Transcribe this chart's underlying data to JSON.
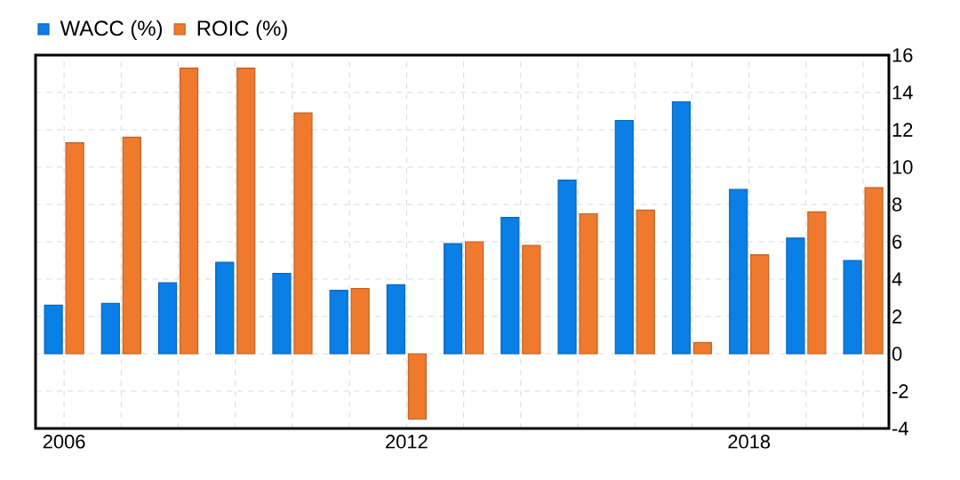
{
  "chart_data": {
    "type": "bar",
    "x": [
      2006,
      2007,
      2008,
      2009,
      2010,
      2011,
      2012,
      2013,
      2014,
      2015,
      2016,
      2017,
      2018,
      2019,
      2020
    ],
    "series": [
      {
        "name": "WACC  (%)",
        "color": "#0a7fe6",
        "values": [
          2.6,
          2.7,
          3.8,
          4.9,
          4.3,
          3.4,
          3.7,
          5.9,
          7.3,
          9.3,
          12.5,
          13.5,
          8.8,
          6.2,
          5.0
        ]
      },
      {
        "name": "ROIC (%)",
        "color": "#ef7a2e",
        "values": [
          11.3,
          11.6,
          15.3,
          15.3,
          12.9,
          3.5,
          -3.5,
          6.0,
          5.8,
          7.5,
          7.7,
          0.6,
          5.3,
          7.6,
          8.9
        ]
      }
    ],
    "xlim": [
      2005.5,
      2020.45
    ],
    "xticks": [
      2006,
      {
        "value": 2007,
        "label": null
      },
      {
        "value": 2008,
        "label": null
      },
      {
        "value": 2009,
        "label": null
      },
      {
        "value": 2010,
        "label": null
      },
      {
        "value": 2011,
        "label": null
      },
      2012,
      {
        "value": 2013,
        "label": null
      },
      {
        "value": 2014,
        "label": null
      },
      {
        "value": 2015,
        "label": null
      },
      {
        "value": 2016,
        "label": null
      },
      {
        "value": 2017,
        "label": null
      },
      2018,
      {
        "value": 2019,
        "label": null
      },
      {
        "value": 2020,
        "label": null
      }
    ],
    "ylim": [
      -4,
      16
    ],
    "yticks": [
      -4,
      -2,
      0,
      2,
      4,
      6,
      8,
      10,
      12,
      14,
      16
    ],
    "grid": true,
    "legend": "top left"
  }
}
